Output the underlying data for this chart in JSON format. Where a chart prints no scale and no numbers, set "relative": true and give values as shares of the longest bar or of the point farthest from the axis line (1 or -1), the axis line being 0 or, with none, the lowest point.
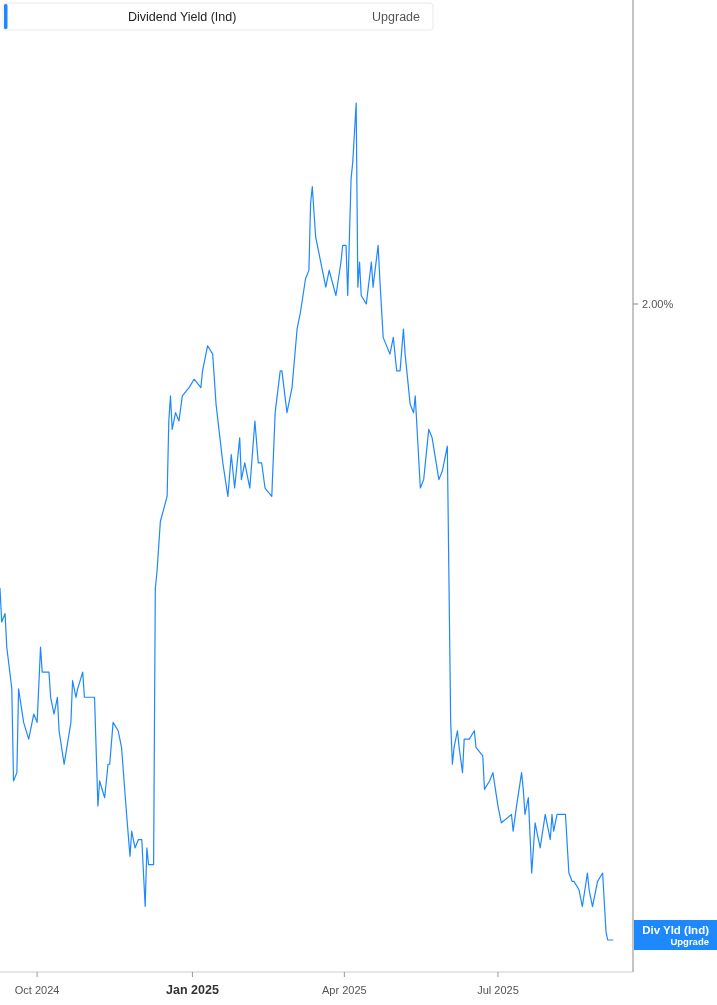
{
  "chart_data": {
    "type": "line",
    "relative": true,
    "legend": "top left",
    "grid": false,
    "marker": "none",
    "line_style": "solid",
    "xlim": [
      "2024-09-09",
      "2025-09-19"
    ],
    "xticks": [
      {
        "value": "2024-10-01",
        "label": "Oct 2024"
      },
      {
        "value": "2025-01-01",
        "label": "Jan 2025"
      },
      {
        "value": "2025-04-01",
        "label": "Apr 2025"
      },
      {
        "value": "2025-07-01",
        "label": "Jul 2025"
      }
    ],
    "annotations": [
      "Upgrade",
      "2.00%",
      "Div Yld (Ind)",
      "Upgrade"
    ],
    "series": [
      {
        "name": "Dividend Yield (Ind)",
        "color": "#1e88ff",
        "x": [
          "2024-09-09",
          "2024-09-10",
          "2024-09-12",
          "2024-09-13",
          "2024-09-16",
          "2024-09-17",
          "2024-09-19",
          "2024-09-20",
          "2024-09-23",
          "2024-09-26",
          "2024-09-29",
          "2024-10-01",
          "2024-10-03",
          "2024-10-04",
          "2024-10-08",
          "2024-10-09",
          "2024-10-11",
          "2024-10-13",
          "2024-10-14",
          "2024-10-17",
          "2024-10-21",
          "2024-10-22",
          "2024-10-24",
          "2024-10-25",
          "2024-10-28",
          "2024-10-29",
          "2024-11-04",
          "2024-11-06",
          "2024-11-07",
          "2024-11-10",
          "2024-11-12",
          "2024-11-13",
          "2024-11-15",
          "2024-11-18",
          "2024-11-20",
          "2024-11-23",
          "2024-11-25",
          "2024-11-26",
          "2024-11-28",
          "2024-11-30",
          "2024-12-02",
          "2024-12-04",
          "2024-12-05",
          "2024-12-06",
          "2024-12-09",
          "2024-12-10",
          "2024-12-11",
          "2024-12-13",
          "2024-12-17",
          "2024-12-18",
          "2024-12-19",
          "2024-12-20",
          "2024-12-22",
          "2024-12-24",
          "2024-12-26",
          "2024-12-30",
          "2025-01-02",
          "2025-01-06",
          "2025-01-07",
          "2025-01-10",
          "2025-01-13",
          "2025-01-15",
          "2025-01-19",
          "2025-01-22",
          "2025-01-24",
          "2025-01-26",
          "2025-01-29",
          "2025-01-30",
          "2025-02-01",
          "2025-02-04",
          "2025-02-07",
          "2025-02-09",
          "2025-02-11",
          "2025-02-13",
          "2025-02-17",
          "2025-02-19",
          "2025-02-22",
          "2025-02-23",
          "2025-02-26",
          "2025-03-01",
          "2025-03-04",
          "2025-03-06",
          "2025-03-09",
          "2025-03-11",
          "2025-03-12",
          "2025-03-13",
          "2025-03-15",
          "2025-03-19",
          "2025-03-21",
          "2025-03-23",
          "2025-03-27",
          "2025-03-30",
          "2025-03-31",
          "2025-04-02",
          "2025-04-03",
          "2025-04-05",
          "2025-04-06",
          "2025-04-08",
          "2025-04-09",
          "2025-04-10",
          "2025-04-11",
          "2025-04-14",
          "2025-04-17",
          "2025-04-18",
          "2025-04-21",
          "2025-04-22",
          "2025-04-24",
          "2025-04-28",
          "2025-04-30",
          "2025-05-02",
          "2025-05-04",
          "2025-05-06",
          "2025-05-07",
          "2025-05-10",
          "2025-05-12",
          "2025-05-13",
          "2025-05-16",
          "2025-05-18",
          "2025-05-21",
          "2025-05-23",
          "2025-05-27",
          "2025-05-29",
          "2025-06-01",
          "2025-06-03",
          "2025-06-04",
          "2025-06-05",
          "2025-06-07",
          "2025-06-08",
          "2025-06-10",
          "2025-06-11",
          "2025-06-14",
          "2025-06-17",
          "2025-06-18",
          "2025-06-22",
          "2025-06-23",
          "2025-06-26",
          "2025-06-28",
          "2025-07-01",
          "2025-07-03",
          "2025-07-09",
          "2025-07-10",
          "2025-07-12",
          "2025-07-15",
          "2025-07-16",
          "2025-07-17",
          "2025-07-19",
          "2025-07-21",
          "2025-07-23",
          "2025-07-26",
          "2025-07-29",
          "2025-08-01",
          "2025-08-02",
          "2025-08-03",
          "2025-08-05",
          "2025-08-10",
          "2025-08-12",
          "2025-08-14",
          "2025-08-15",
          "2025-08-18",
          "2025-08-20",
          "2025-08-23",
          "2025-08-24",
          "2025-08-26",
          "2025-08-27",
          "2025-08-29",
          "2025-09-01",
          "2025-09-03",
          "2025-09-04",
          "2025-09-07"
        ],
        "values": [
          0.42,
          0.38,
          0.39,
          0.35,
          0.3,
          0.19,
          0.2,
          0.3,
          0.26,
          0.24,
          0.27,
          0.26,
          0.35,
          0.32,
          0.32,
          0.29,
          0.27,
          0.29,
          0.25,
          0.21,
          0.26,
          0.31,
          0.29,
          0.3,
          0.32,
          0.29,
          0.29,
          0.16,
          0.19,
          0.17,
          0.21,
          0.21,
          0.26,
          0.25,
          0.23,
          0.15,
          0.1,
          0.13,
          0.11,
          0.12,
          0.12,
          0.04,
          0.11,
          0.09,
          0.09,
          0.42,
          0.44,
          0.5,
          0.53,
          0.62,
          0.65,
          0.61,
          0.63,
          0.62,
          0.65,
          0.66,
          0.67,
          0.66,
          0.68,
          0.71,
          0.7,
          0.64,
          0.57,
          0.53,
          0.58,
          0.54,
          0.6,
          0.55,
          0.57,
          0.54,
          0.62,
          0.57,
          0.57,
          0.54,
          0.53,
          0.63,
          0.68,
          0.68,
          0.63,
          0.66,
          0.73,
          0.75,
          0.79,
          0.8,
          0.88,
          0.9,
          0.84,
          0.8,
          0.78,
          0.8,
          0.77,
          0.81,
          0.83,
          0.83,
          0.77,
          0.91,
          0.93,
          1.0,
          0.78,
          0.81,
          0.77,
          0.76,
          0.81,
          0.78,
          0.83,
          0.79,
          0.72,
          0.7,
          0.72,
          0.68,
          0.68,
          0.73,
          0.7,
          0.64,
          0.63,
          0.65,
          0.54,
          0.55,
          0.61,
          0.6,
          0.55,
          0.56,
          0.59,
          0.26,
          0.21,
          0.23,
          0.25,
          0.23,
          0.2,
          0.24,
          0.24,
          0.25,
          0.23,
          0.22,
          0.18,
          0.19,
          0.2,
          0.16,
          0.14,
          0.15,
          0.13,
          0.16,
          0.2,
          0.18,
          0.15,
          0.17,
          0.08,
          0.14,
          0.11,
          0.15,
          0.12,
          0.15,
          0.13,
          0.15,
          0.15,
          0.08,
          0.07,
          0.07,
          0.06,
          0.04,
          0.08,
          0.06,
          0.04,
          0.05,
          0.07,
          0.08,
          0.01,
          0.0,
          0.0
        ]
      }
    ]
  }
}
